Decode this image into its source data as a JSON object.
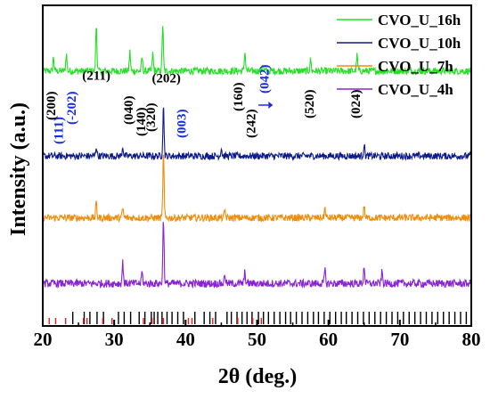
{
  "chart_data": {
    "type": "line",
    "xlabel": "2θ (deg.)",
    "ylabel": "Intensity (a.u.)",
    "xlim": [
      20,
      80
    ],
    "x_ticks": [
      20,
      30,
      40,
      50,
      60,
      70,
      80
    ],
    "x_tick_labels": [
      "20",
      "30",
      "40",
      "50",
      "60",
      "70",
      "80"
    ],
    "y_ticks_shown": false,
    "legend_position": "top-right",
    "series": [
      {
        "name": "CVO_U_16h",
        "color": "#22e022",
        "baseline": 6.5,
        "noise": 0.09,
        "peaks": [
          [
            21.5,
            0.35
          ],
          [
            23.3,
            0.45
          ],
          [
            27.5,
            1.2
          ],
          [
            32.2,
            0.5
          ],
          [
            33.9,
            0.35
          ],
          [
            35.4,
            0.45
          ],
          [
            36.8,
            1.2
          ],
          [
            48.3,
            0.5
          ],
          [
            50.8,
            0.2
          ],
          [
            57.5,
            0.3
          ],
          [
            64.0,
            0.4
          ]
        ]
      },
      {
        "name": "CVO_U_10h",
        "color": "#0d1a8c",
        "baseline": 4.3,
        "noise": 0.09,
        "peaks": [
          [
            27.5,
            0.25
          ],
          [
            31.2,
            0.25
          ],
          [
            36.9,
            1.3
          ],
          [
            45.0,
            0.2
          ],
          [
            65.0,
            0.3
          ]
        ]
      },
      {
        "name": "CVO_U_7h",
        "color": "#f08c0a",
        "baseline": 2.7,
        "noise": 0.09,
        "peaks": [
          [
            27.5,
            0.4
          ],
          [
            31.2,
            0.25
          ],
          [
            36.9,
            1.7
          ],
          [
            45.5,
            0.2
          ],
          [
            59.5,
            0.25
          ],
          [
            65.0,
            0.3
          ]
        ]
      },
      {
        "name": "CVO_U_4h",
        "color": "#8a22d6",
        "baseline": 1.0,
        "noise": 0.1,
        "peaks": [
          [
            31.2,
            0.55
          ],
          [
            33.9,
            0.3
          ],
          [
            36.9,
            1.7
          ],
          [
            45.5,
            0.25
          ],
          [
            48.3,
            0.3
          ],
          [
            59.5,
            0.35
          ],
          [
            65.0,
            0.45
          ],
          [
            67.5,
            0.3
          ]
        ]
      }
    ],
    "reference_lines": {
      "black": {
        "color": "#000000",
        "positions": [
          24.2,
          25.8,
          26.6,
          27.6,
          28.5,
          30.6,
          31.4,
          32.3,
          33.5,
          34.3,
          35.2,
          35.6,
          36.1,
          36.7,
          37.4,
          38.1,
          38.9,
          39.7,
          41.3,
          42.6,
          43.4,
          44.2,
          45.8,
          46.4,
          47.2,
          47.9,
          48.6,
          49.3,
          50.2,
          50.9,
          51.6,
          52.4,
          53.2,
          54.0,
          54.7,
          55.5,
          56.3,
          57.1,
          57.9,
          58.6,
          59.4,
          60.2,
          61.0,
          61.8,
          62.5,
          63.3,
          64.1,
          64.9,
          65.7,
          66.5,
          67.3,
          68.1,
          68.9,
          69.7,
          70.5,
          71.3,
          72.1,
          72.9,
          73.7,
          74.5,
          75.3,
          76.1,
          76.9,
          77.7,
          78.5,
          79.3
        ]
      },
      "red": {
        "color": "#e81c1c",
        "positions": [
          20.9,
          21.8,
          23.2,
          25.7,
          26.2,
          28.4,
          29.7,
          34.1,
          35.3,
          36.9,
          40.4,
          40.9,
          43.8,
          47.3,
          49.4,
          50.6
        ]
      }
    },
    "peak_labels": [
      {
        "text": "(200)",
        "x": 21.3,
        "color": "#000000"
      },
      {
        "text": "(111)",
        "x": 22.4,
        "color": "#1a2be0"
      },
      {
        "text": "(-202)",
        "x": 24.2,
        "color": "#1a2be0"
      },
      {
        "text": "(211)",
        "x": 27.5,
        "color": "#000000"
      },
      {
        "text": "(040)",
        "x": 32.2,
        "color": "#000000"
      },
      {
        "text": "(140)",
        "x": 33.9,
        "color": "#000000"
      },
      {
        "text": "(320)",
        "x": 35.3,
        "color": "#000000"
      },
      {
        "text": "(202)",
        "x": 37.3,
        "color": "#000000"
      },
      {
        "text": "(003)",
        "x": 39.6,
        "color": "#1a2be0"
      },
      {
        "text": "(160)",
        "x": 47.5,
        "color": "#000000"
      },
      {
        "text": "(242)",
        "x": 49.3,
        "color": "#000000"
      },
      {
        "text": "(042)",
        "x": 51.2,
        "color": "#1a2be0"
      },
      {
        "text": "(520)",
        "x": 57.5,
        "color": "#000000"
      },
      {
        "text": "(024)",
        "x": 64.0,
        "color": "#000000"
      }
    ]
  }
}
